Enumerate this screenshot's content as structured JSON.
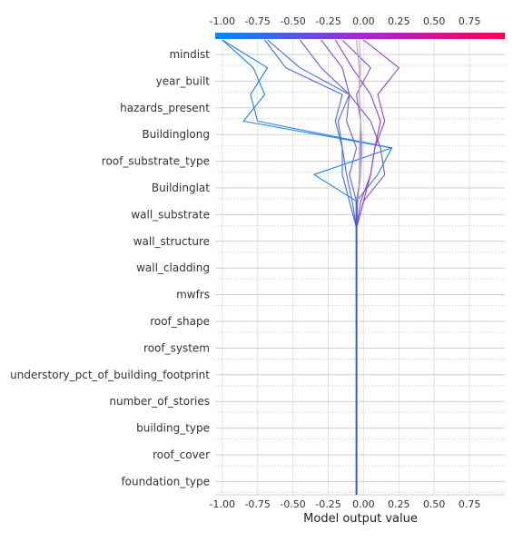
{
  "chart_data": {
    "type": "line",
    "chart_kind": "decision plot",
    "xlabel": "Model output value",
    "xlim": [
      -1.05,
      1.0
    ],
    "x_ticks": [
      "-1.00",
      "-0.75",
      "-0.50",
      "-0.25",
      "0.00",
      "0.25",
      "0.50",
      "0.75"
    ],
    "x_tick_values": [
      -1.0,
      -0.75,
      -0.5,
      -0.25,
      0.0,
      0.25,
      0.5,
      0.75
    ],
    "base_value": -0.05,
    "colormap": [
      "#008afb",
      "#9d2bd6",
      "#ff0052"
    ],
    "features": [
      "mindist",
      "year_built",
      "hazards_present",
      "Buildinglong",
      "roof_substrate_type",
      "Buildinglat",
      "wall_substrate",
      "wall_structure",
      "wall_cladding",
      "mwfrs",
      "roof_shape",
      "roof_system",
      "understory_pct_of_building_footprint",
      "number_of_stories",
      "building_type",
      "roof_cover",
      "foundation_type"
    ],
    "series": [
      {
        "color": "#1a85f0",
        "values": [
          -0.05,
          -0.05,
          -0.05,
          -0.05,
          -0.05,
          -0.05,
          -0.05,
          -0.05,
          -0.05,
          -0.05,
          -0.05,
          -0.05,
          0.1,
          0.2,
          -0.75,
          -0.8,
          -0.68,
          -1.0
        ]
      },
      {
        "color": "#1a85f0",
        "values": [
          -0.05,
          -0.05,
          -0.05,
          -0.05,
          -0.05,
          -0.05,
          -0.05,
          -0.05,
          -0.05,
          -0.05,
          -0.05,
          -0.05,
          -0.35,
          0.2,
          -0.85,
          -0.7,
          -0.78,
          -1.0
        ]
      },
      {
        "color": "#3b6fe8",
        "values": [
          -0.05,
          -0.05,
          -0.05,
          -0.05,
          -0.05,
          -0.05,
          -0.05,
          -0.05,
          -0.05,
          -0.05,
          -0.05,
          -0.1,
          -0.15,
          -0.15,
          -0.18,
          -0.1,
          -0.45,
          -0.68
        ]
      },
      {
        "color": "#4a68e6",
        "values": [
          -0.05,
          -0.05,
          -0.05,
          -0.05,
          -0.05,
          -0.05,
          -0.05,
          -0.05,
          -0.05,
          -0.05,
          -0.05,
          -0.08,
          -0.12,
          -0.15,
          -0.2,
          -0.15,
          -0.55,
          -0.7
        ]
      },
      {
        "color": "#6a5be0",
        "values": [
          -0.05,
          -0.05,
          -0.05,
          -0.05,
          -0.05,
          -0.05,
          -0.05,
          -0.05,
          -0.05,
          -0.05,
          -0.05,
          -0.05,
          -0.1,
          -0.05,
          -0.12,
          -0.1,
          -0.3,
          -0.45
        ]
      },
      {
        "color": "#7d4fdb",
        "values": [
          -0.05,
          -0.05,
          -0.05,
          -0.05,
          -0.05,
          -0.05,
          -0.05,
          -0.05,
          -0.05,
          -0.05,
          -0.05,
          0.0,
          0.15,
          0.12,
          0.05,
          -0.1,
          -0.15,
          -0.3
        ]
      },
      {
        "color": "#9b3ed3",
        "values": [
          -0.05,
          -0.05,
          -0.05,
          -0.05,
          -0.05,
          -0.05,
          -0.05,
          -0.05,
          -0.05,
          -0.05,
          -0.05,
          0.0,
          0.05,
          0.08,
          0.15,
          0.1,
          0.25,
          0.0
        ]
      },
      {
        "color": "#9a3ccf",
        "values": [
          -0.05,
          -0.05,
          -0.05,
          -0.05,
          -0.05,
          -0.05,
          -0.05,
          -0.05,
          -0.05,
          -0.05,
          -0.05,
          -0.02,
          0.05,
          0.08,
          0.12,
          0.05,
          -0.08,
          -0.2
        ]
      },
      {
        "color": "#7a58d8",
        "values": [
          -0.05,
          -0.05,
          -0.05,
          -0.05,
          -0.05,
          -0.05,
          -0.05,
          -0.05,
          -0.05,
          -0.05,
          -0.05,
          -0.05,
          -0.02,
          -0.02,
          -0.02,
          -0.05,
          0.05,
          -0.15
        ]
      },
      {
        "color": "#a8a0c8",
        "values": [
          -0.05,
          -0.05,
          -0.05,
          -0.05,
          -0.05,
          -0.05,
          -0.05,
          -0.05,
          -0.05,
          -0.05,
          -0.05,
          -0.04,
          -0.03,
          -0.03,
          -0.02,
          -0.03,
          -0.03,
          -0.05
        ]
      },
      {
        "color": "#c8a8a8",
        "values": [
          -0.05,
          -0.05,
          -0.05,
          -0.05,
          -0.05,
          -0.05,
          -0.05,
          -0.05,
          -0.05,
          -0.05,
          -0.05,
          -0.04,
          -0.02,
          -0.01,
          -0.02,
          -0.03,
          -0.02,
          -0.03
        ]
      }
    ]
  }
}
